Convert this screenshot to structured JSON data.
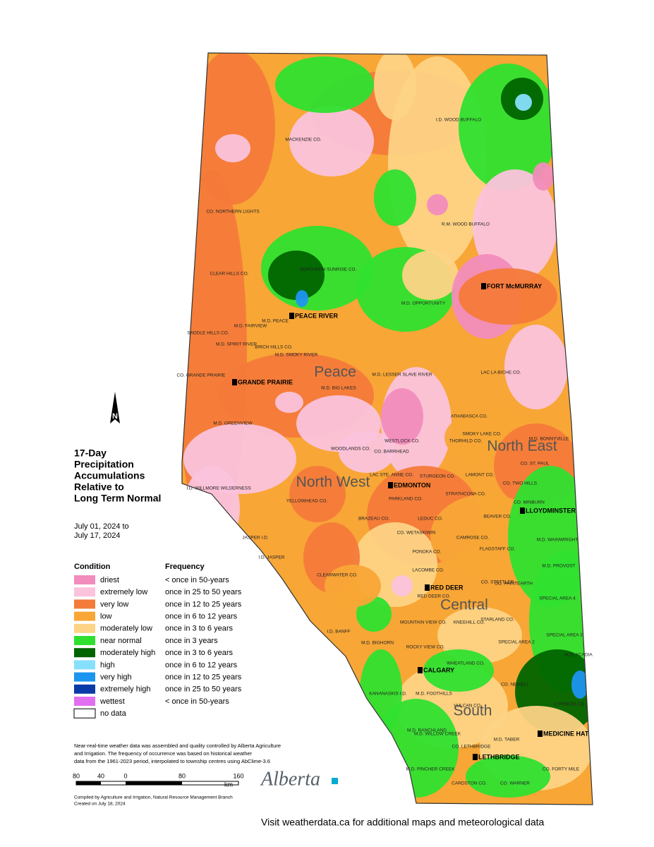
{
  "map": {
    "title_lines": [
      "17-Day",
      "Precipitation",
      "Accumulations",
      "Relative to",
      "Long Term Normal"
    ],
    "date_lines": [
      "July 01, 2024 to",
      "July 17, 2024"
    ],
    "legend": {
      "condition_header": "Condition",
      "frequency_header": "Frequency",
      "rows": [
        {
          "condition": "driest",
          "frequency": "< once in 50-years",
          "color": "#f28cbc"
        },
        {
          "condition": "extremely low",
          "frequency": "once in 25 to 50 years",
          "color": "#fbc3dc"
        },
        {
          "condition": "very low",
          "frequency": "once in 12 to 25 years",
          "color": "#f47a3a"
        },
        {
          "condition": "low",
          "frequency": "once in 6 to 12 years",
          "color": "#f8a636"
        },
        {
          "condition": "moderately low",
          "frequency": "once in 3 to 6 years",
          "color": "#fdd385"
        },
        {
          "condition": "near normal",
          "frequency": "once in 3 years",
          "color": "#2fe02f"
        },
        {
          "condition": "moderately high",
          "frequency": "once in 3 to 6 years",
          "color": "#006400"
        },
        {
          "condition": "high",
          "frequency": "once in 6 to 12 years",
          "color": "#86e0fb"
        },
        {
          "condition": "very high",
          "frequency": "once in 12 to 25 years",
          "color": "#1c95f0"
        },
        {
          "condition": "extremely high",
          "frequency": "once in 25 to 50 years",
          "color": "#0a3aa8"
        },
        {
          "condition": "wettest",
          "frequency": "< once in 50-years",
          "color": "#e070f0"
        },
        {
          "condition": "no data",
          "frequency": "",
          "color": "#ffffff"
        }
      ]
    },
    "regions": [
      "Peace",
      "North West",
      "North East",
      "Central",
      "South"
    ],
    "cities": [
      "PEACE RIVER",
      "FORT McMURRAY",
      "GRANDE PRAIRIE",
      "EDMONTON",
      "LLOYDMINSTER",
      "RED DEER",
      "CALGARY",
      "MEDICINE HAT",
      "LETHBRIDGE"
    ],
    "counties": [
      "I.D. WOOD BUFFALO",
      "MACKENZIE CO.",
      "CO. NORTHERN LIGHTS",
      "R.M. WOOD BUFFALO",
      "CLEAR HILLS CO.",
      "NORTHERN SUNRISE CO.",
      "M.D. OPPORTUNITY",
      "M.D. FAIRVIEW",
      "M.D. PEACE",
      "SADDLE HILLS CO.",
      "M.D. SPIRIT RIVER",
      "BIRCH HILLS CO.",
      "M.D. SMOKY RIVER",
      "CO. GRANDE PRAIRIE",
      "M.D. LESSER SLAVE RIVER",
      "M.D. BIG LAKES",
      "M.D. GREENVIEW",
      "LAC LA BICHE CO.",
      "ATHABASCA CO.",
      "M.D. BONNYVILLE",
      "WOODLANDS CO.",
      "WESTLOCK CO.",
      "THORHILD CO.",
      "SMOKY LAKE CO.",
      "CO. BARRHEAD",
      "CO. ST. PAUL",
      "I.D. WILLMORE WILDERNESS",
      "LAC STE. ANNE CO.",
      "STURGEON CO.",
      "LAMONT CO.",
      "CO. TWO HILLS",
      "YELLOWHEAD CO.",
      "PARKLAND CO.",
      "STRATHCONA CO.",
      "CO. MINBURN",
      "BRAZEAU CO.",
      "LEDUC CO.",
      "BEAVER CO.",
      "CO. WETASKIWIN",
      "CAMROSE CO.",
      "JASPER I.D.",
      "M.D. WAINWRIGHT",
      "FLAGSTAFF CO.",
      "PONOKA CO.",
      "I.D. JASPER",
      "M.D. PROVOST",
      "LACOMBE CO.",
      "CLEARWATER CO.",
      "CO. STETTLER",
      "CO. PAINTEARTH",
      "RED DEER CO.",
      "SPECIAL AREA 4",
      "MOUNTAIN VIEW CO.",
      "KNEEHILL CO.",
      "STARLAND CO.",
      "I.D. BANFF",
      "SPECIAL AREA 3",
      "M.D. BIGHORN",
      "ROCKY VIEW CO.",
      "SPECIAL AREA 2",
      "M.D. ACADIA",
      "WHEATLAND CO.",
      "CO. NEWELL",
      "KANANASKIS I.D.",
      "M.D. FOOTHILLS",
      "CYPRESS CO.",
      "VULCAN CO.",
      "M.D. RANCHLAND",
      "M.D. WILLOW CREEK",
      "M.D. TABER",
      "CO. LETHBRIDGE",
      "CO. FORTY MILE",
      "M.D. PINCHER CREEK",
      "CARDSTON CO.",
      "CO. WARNER"
    ],
    "notes": [
      "Near-real-time weather data was assembled and quality controlled by Alberta Agriculture",
      "and Irrigation. The frequency of occurrence was based on historical weather",
      "data from the 1961-2023 period, interpolated to township centres using AbClime-3.6"
    ],
    "scale_labels": [
      "80",
      "40",
      "0",
      "80",
      "160"
    ],
    "scale_unit": "km",
    "north": "N",
    "compiled": [
      "Compiled by Agriculture and Irrigation, Natural Resource Management Branch",
      "Created on July 18, 2024"
    ],
    "brand": "Alberta",
    "footer": "Visit weatherdata.ca for additional maps and meteorological data"
  }
}
